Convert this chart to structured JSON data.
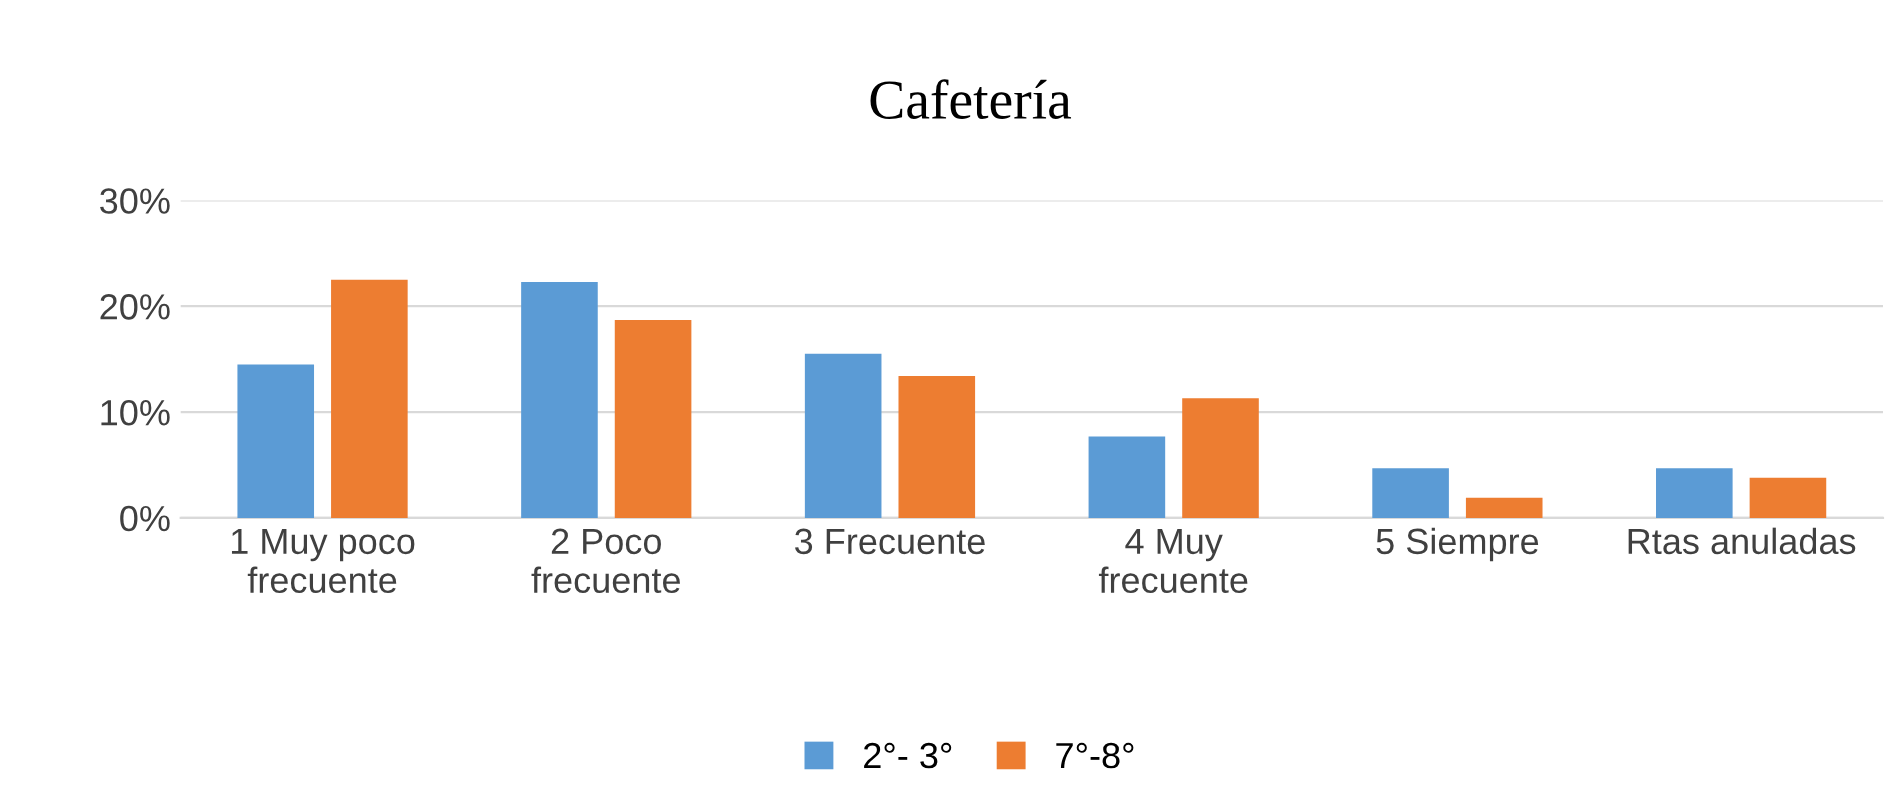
{
  "chart_data": {
    "type": "bar",
    "title": "Cafetería",
    "categories": [
      "1 Muy poco\nfrecuente",
      "2 Poco\nfrecuente",
      "3 Frecuente",
      "4 Muy\nfrecuente",
      "5 Siempre",
      "Rtas anuladas"
    ],
    "series": [
      {
        "name": "2°- 3°",
        "color": "#5b9bd5",
        "values": [
          14.5,
          22.3,
          15.5,
          7.7,
          4.7,
          4.7
        ]
      },
      {
        "name": "7°-8°",
        "color": "#ed7d31",
        "values": [
          22.5,
          18.7,
          13.4,
          11.3,
          1.9,
          3.8
        ]
      }
    ],
    "ylim": [
      0,
      30
    ],
    "yticks": [
      {
        "value": 0,
        "label": "0%"
      },
      {
        "value": 10,
        "label": "10%"
      },
      {
        "value": 20,
        "label": "20%"
      },
      {
        "value": 30,
        "label": "30%"
      }
    ],
    "grid": "y",
    "legend": "bottom"
  }
}
